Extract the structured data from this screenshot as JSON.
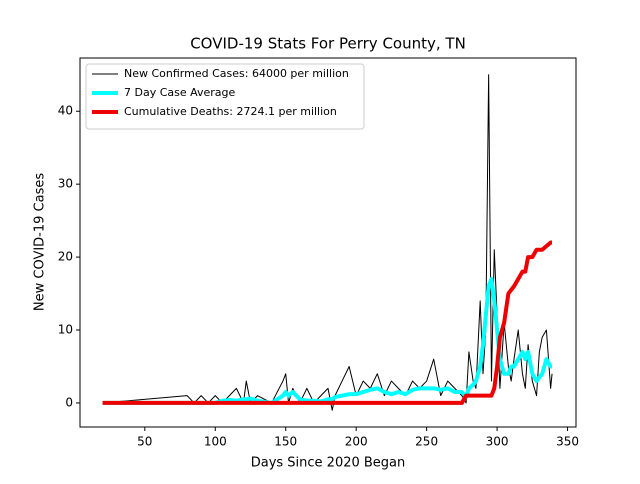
{
  "chart_data": {
    "type": "line",
    "title": "COVID-19 Stats For Perry County, TN",
    "xlabel": "Days Since 2020 Began",
    "ylabel": "New COVID-19 Cases",
    "x": [
      20,
      80,
      85,
      90,
      95,
      100,
      105,
      110,
      115,
      120,
      122,
      125,
      130,
      140,
      148,
      150,
      152,
      155,
      160,
      165,
      170,
      175,
      180,
      183,
      185,
      190,
      195,
      200,
      205,
      210,
      215,
      220,
      225,
      230,
      235,
      240,
      245,
      250,
      255,
      260,
      265,
      270,
      275,
      278,
      280,
      283,
      285,
      288,
      290,
      292,
      294,
      296,
      298,
      300,
      302,
      305,
      308,
      310,
      312,
      315,
      318,
      320,
      322,
      325,
      328,
      330,
      332,
      335,
      338,
      339
    ],
    "series": [
      {
        "name": "New Confirmed Cases: 64000 per million",
        "color": "#000000",
        "width": 1,
        "values": [
          0,
          1,
          0,
          1,
          0,
          1,
          0,
          1,
          2,
          0,
          3,
          0,
          1,
          0,
          3,
          4,
          0,
          2,
          0,
          2,
          0,
          1,
          2,
          -1,
          1,
          3,
          5,
          1,
          3,
          2,
          4,
          1,
          3,
          2,
          1,
          3,
          2,
          3,
          6,
          1,
          3,
          2,
          1,
          0,
          7,
          3,
          2,
          14,
          4,
          10,
          45,
          3,
          21,
          12,
          2,
          11,
          5,
          3,
          6,
          10,
          4,
          2,
          8,
          3,
          1,
          7,
          9,
          10,
          2,
          4
        ]
      },
      {
        "name": "7 Day Case Average",
        "color": "#00ffff",
        "width": 4,
        "values": [
          0,
          0,
          0,
          0,
          0,
          0,
          0.3,
          0.4,
          0.3,
          0.5,
          0.5,
          0.6,
          0.3,
          0,
          1,
          1.5,
          1,
          1.5,
          0.5,
          0.3,
          0.3,
          0.2,
          0.5,
          0.5,
          0.8,
          1,
          1.2,
          1.2,
          1.5,
          1.8,
          2,
          1.5,
          1.2,
          1.5,
          1.2,
          1.8,
          2,
          2,
          2,
          1.8,
          2,
          1.5,
          1.5,
          0.8,
          2,
          2.5,
          3,
          5,
          8,
          12,
          16,
          17,
          14,
          10,
          6,
          4,
          4,
          5,
          5,
          6,
          7,
          6,
          7,
          4,
          3,
          3.5,
          4,
          6,
          5,
          5
        ]
      },
      {
        "name": "Cumulative Deaths: 2724.1 per million",
        "color": "#ee0000",
        "width": 4,
        "values": [
          0,
          0,
          0,
          0,
          0,
          0,
          0,
          0,
          0,
          0,
          0,
          0,
          0,
          0,
          0,
          0,
          0,
          0,
          0,
          0,
          0,
          0,
          0,
          0,
          0,
          0,
          0,
          0,
          0,
          0,
          0,
          0,
          0,
          0,
          0,
          0,
          0,
          0,
          0,
          0,
          0,
          0,
          0,
          1,
          1,
          1,
          1,
          1,
          1,
          1,
          1,
          1,
          2,
          5,
          9,
          11,
          15,
          15.5,
          16,
          17,
          18,
          18,
          20,
          20,
          21,
          21,
          21,
          21.5,
          22,
          22
        ]
      }
    ],
    "xlim": [
      4,
      356
    ],
    "xticks": [
      50,
      100,
      150,
      200,
      250,
      300,
      350
    ],
    "ylim": [
      -3.3,
      47.3
    ],
    "yticks": [
      0,
      10,
      20,
      30,
      40
    ],
    "legend": "upper left"
  }
}
